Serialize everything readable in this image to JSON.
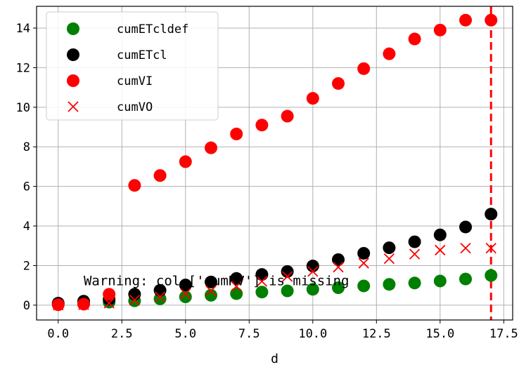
{
  "chart_data": {
    "type": "scatter",
    "title": "",
    "xlabel": "d",
    "ylabel": "",
    "xlim": [
      -0.85,
      17.85
    ],
    "ylim": [
      -0.75,
      15.1
    ],
    "xticks": [
      0,
      2.5,
      5,
      7.5,
      10,
      12.5,
      15,
      17.5
    ],
    "xtick_labels": [
      "0.0",
      "2.5",
      "5.0",
      "7.5",
      "10.0",
      "12.5",
      "15.0",
      "17.5"
    ],
    "yticks": [
      0,
      2,
      4,
      6,
      8,
      10,
      12,
      14
    ],
    "ytick_labels": [
      "0",
      "2",
      "4",
      "6",
      "8",
      "10",
      "12",
      "14"
    ],
    "grid": true,
    "legend_position": "top-left",
    "series": [
      {
        "name": "cumETcldef",
        "marker": "circle",
        "color": "#008000",
        "x": [
          0,
          1,
          2,
          3,
          4,
          5,
          6,
          7,
          8,
          9,
          10,
          11,
          12,
          13,
          14,
          15,
          16,
          17
        ],
        "y": [
          0.05,
          0.08,
          0.15,
          0.22,
          0.32,
          0.42,
          0.5,
          0.58,
          0.66,
          0.72,
          0.8,
          0.88,
          0.97,
          1.05,
          1.12,
          1.22,
          1.32,
          1.5
        ]
      },
      {
        "name": "cumETcl",
        "marker": "circle",
        "color": "#000000",
        "x": [
          0,
          1,
          2,
          3,
          4,
          5,
          6,
          7,
          8,
          9,
          10,
          11,
          12,
          13,
          14,
          15,
          16,
          17
        ],
        "y": [
          0.1,
          0.2,
          0.3,
          0.55,
          0.75,
          1.02,
          1.17,
          1.35,
          1.55,
          1.7,
          1.98,
          2.3,
          2.62,
          2.9,
          3.2,
          3.55,
          3.95,
          4.6
        ]
      },
      {
        "name": "cumVI",
        "marker": "circle",
        "color": "#ff0000",
        "x": [
          0,
          1,
          2,
          3,
          4,
          5,
          6,
          7,
          8,
          9,
          10,
          11,
          12,
          13,
          14,
          15,
          16,
          17
        ],
        "y": [
          0.02,
          0.05,
          0.55,
          6.05,
          6.55,
          7.25,
          7.95,
          8.65,
          9.1,
          9.55,
          10.45,
          11.2,
          11.95,
          12.7,
          13.45,
          13.9,
          14.4,
          14.4
        ]
      },
      {
        "name": "cumVO",
        "marker": "x",
        "color": "#ff0000",
        "x": [
          0,
          1,
          2,
          3,
          4,
          5,
          6,
          7,
          8,
          9,
          10,
          11,
          12,
          13,
          14,
          15,
          16,
          17
        ],
        "y": [
          0.0,
          0.02,
          0.1,
          0.25,
          0.42,
          0.58,
          0.72,
          0.95,
          1.2,
          1.45,
          1.7,
          1.92,
          2.12,
          2.35,
          2.58,
          2.78,
          2.88,
          2.88
        ]
      }
    ],
    "vline": {
      "x": 17,
      "color": "#ff0000",
      "style": "dashed"
    },
    "annotation": {
      "text": "Warning: col ['cumRV'] is missing",
      "x": 1.0,
      "y": 1.0
    }
  }
}
